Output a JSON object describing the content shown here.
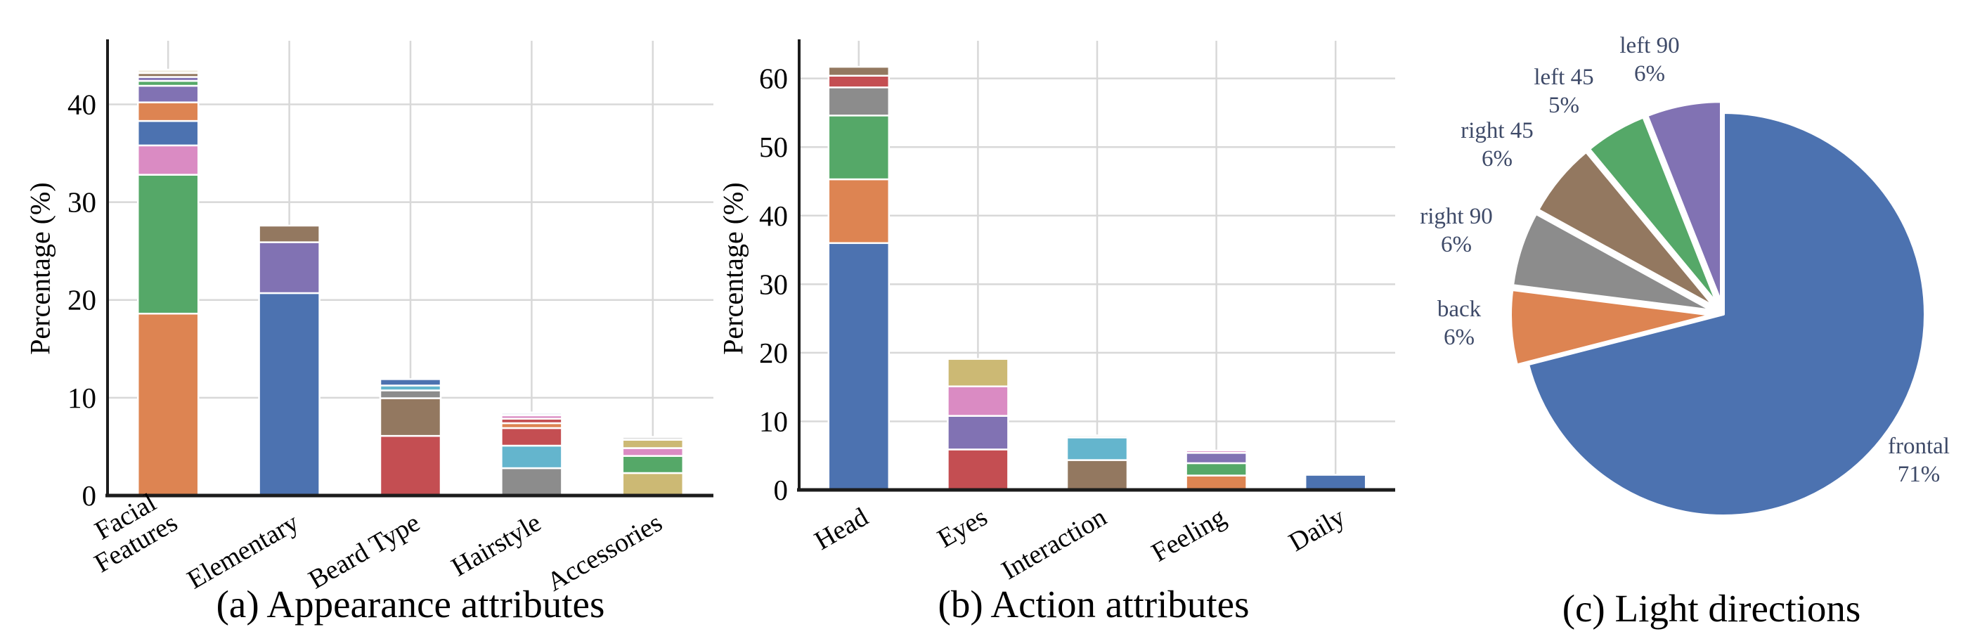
{
  "palette": {
    "blue": "#4C72B0",
    "orange": "#DD8452",
    "green": "#55A868",
    "red": "#C44E52",
    "purple": "#8172B3",
    "brown": "#937860",
    "pink": "#DA8BC3",
    "gray": "#8C8C8C",
    "khaki": "#CCB974",
    "cyan": "#64B5CD",
    "cream": "#F1ECDF",
    "light_gray": "#DFDFDF",
    "pale_blue": "#EEF3F7",
    "grid": "#D8D8D8",
    "spine": "#1C1C1C",
    "bar_edge": "#FFFFFF",
    "pie_label": "#3E4A68",
    "text": "#000000"
  },
  "chart_data": [
    {
      "type": "bar",
      "stacked": true,
      "caption": "(a) Appearance attributes",
      "ylabel": "Percentage (%)",
      "yticks": [
        0,
        10,
        20,
        30,
        40
      ],
      "ylim": [
        0,
        46.5
      ],
      "grid": true,
      "legend": "none",
      "categories": [
        [
          "Facial",
          "Features"
        ],
        [
          "Elementary"
        ],
        [
          "Beard Type"
        ],
        [
          "Hairstyle"
        ],
        [
          "Accessories"
        ]
      ],
      "stacks": [
        [
          {
            "color": "orange",
            "value": 18.6
          },
          {
            "color": "green",
            "value": 14.2
          },
          {
            "color": "pink",
            "value": 3.0
          },
          {
            "color": "blue",
            "value": 2.5
          },
          {
            "color": "orange",
            "value": 1.9
          },
          {
            "color": "purple",
            "value": 1.7
          },
          {
            "color": "green",
            "value": 0.5
          },
          {
            "color": "purple",
            "value": 0.4
          },
          {
            "color": "brown",
            "value": 0.4
          },
          {
            "color": "cream",
            "value": 0.35
          }
        ],
        [
          {
            "color": "blue",
            "value": 20.7
          },
          {
            "color": "purple",
            "value": 5.2
          },
          {
            "color": "brown",
            "value": 1.7
          }
        ],
        [
          {
            "color": "red",
            "value": 6.1
          },
          {
            "color": "brown",
            "value": 3.85
          },
          {
            "color": "gray",
            "value": 0.8
          },
          {
            "color": "cyan",
            "value": 0.5
          },
          {
            "color": "blue",
            "value": 0.65
          }
        ],
        [
          {
            "color": "gray",
            "value": 2.8
          },
          {
            "color": "cyan",
            "value": 2.3
          },
          {
            "color": "red",
            "value": 1.8
          },
          {
            "color": "orange",
            "value": 0.5
          },
          {
            "color": "red",
            "value": 0.45
          },
          {
            "color": "pink",
            "value": 0.35
          },
          {
            "color": "pale_blue",
            "value": 0.3
          }
        ],
        [
          {
            "color": "khaki",
            "value": 2.3
          },
          {
            "color": "green",
            "value": 1.75
          },
          {
            "color": "pink",
            "value": 0.8
          },
          {
            "color": "khaki",
            "value": 0.85
          },
          {
            "color": "light_gray",
            "value": 0.3
          }
        ]
      ]
    },
    {
      "type": "bar",
      "stacked": true,
      "caption": "(b) Action attributes",
      "ylabel": "Percentage (%)",
      "yticks": [
        0,
        10,
        20,
        30,
        40,
        50,
        60
      ],
      "ylim": [
        0,
        65.5
      ],
      "grid": true,
      "legend": "none",
      "categories": [
        [
          "Head"
        ],
        [
          "Eyes"
        ],
        [
          "Interaction"
        ],
        [
          "Feeling"
        ],
        [
          "Daily"
        ]
      ],
      "stacks": [
        [
          {
            "color": "blue",
            "value": 36.0
          },
          {
            "color": "orange",
            "value": 9.3
          },
          {
            "color": "green",
            "value": 9.3
          },
          {
            "color": "gray",
            "value": 4.1
          },
          {
            "color": "red",
            "value": 1.7
          },
          {
            "color": "brown",
            "value": 1.3
          }
        ],
        [
          {
            "color": "red",
            "value": 5.9
          },
          {
            "color": "purple",
            "value": 4.9
          },
          {
            "color": "pink",
            "value": 4.3
          },
          {
            "color": "khaki",
            "value": 4.0
          }
        ],
        [
          {
            "color": "brown",
            "value": 4.35
          },
          {
            "color": "cyan",
            "value": 3.3
          },
          {
            "color": "light_gray",
            "value": 0.3
          }
        ],
        [
          {
            "color": "orange",
            "value": 2.1
          },
          {
            "color": "green",
            "value": 1.8
          },
          {
            "color": "purple",
            "value": 1.5
          },
          {
            "color": "pink",
            "value": 0.35
          }
        ],
        [
          {
            "color": "blue",
            "value": 2.2
          }
        ]
      ]
    },
    {
      "type": "pie",
      "caption": "(c) Light directions",
      "start_angle": 90,
      "direction": "clockwise",
      "legend": "none",
      "slices": [
        {
          "label": "frontal",
          "pct": 71,
          "color": "blue",
          "explode": false
        },
        {
          "label": "back",
          "pct": 6,
          "color": "orange",
          "explode": true
        },
        {
          "label": "right 90",
          "pct": 6,
          "color": "gray",
          "explode": true
        },
        {
          "label": "right 45",
          "pct": 6,
          "color": "brown",
          "explode": true
        },
        {
          "label": "left 45",
          "pct": 5,
          "color": "green",
          "explode": true
        },
        {
          "label": "left 90",
          "pct": 6,
          "color": "purple",
          "explode": true
        }
      ]
    }
  ]
}
